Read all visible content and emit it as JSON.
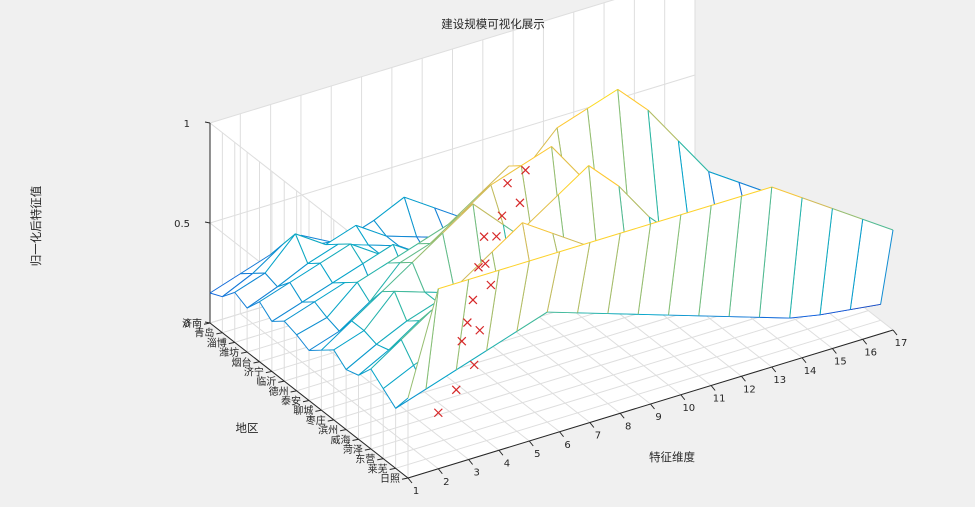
{
  "window": {
    "background": "#f0f0f0"
  },
  "chart_data": {
    "type": "surface3d",
    "title": "建设规模可视化展示",
    "xlabel": "地区",
    "ylabel": "特征维度",
    "zlabel": "归一化后特征值",
    "x_categories": [
      "济南",
      "青岛",
      "淄博",
      "潍坊",
      "烟台",
      "济宁",
      "临沂",
      "德州",
      "泰安",
      "聊城",
      "枣庄",
      "滨州",
      "威海",
      "菏泽",
      "东营",
      "莱芜",
      "日照"
    ],
    "y_ticks": [
      1,
      2,
      3,
      4,
      5,
      6,
      7,
      8,
      9,
      10,
      11,
      12,
      13,
      14,
      15,
      16,
      17
    ],
    "z_ticks": [
      0,
      0.5,
      1
    ],
    "zlim": [
      0,
      1
    ],
    "grid": true,
    "colormap": "parula",
    "colormap_stops": [
      "#352a87",
      "#0f5cdd",
      "#1481d6",
      "#06a4ca",
      "#2eb7a4",
      "#87bf77",
      "#d1bb59",
      "#fec832",
      "#f9fb0e"
    ],
    "values": [
      [
        0.15,
        0.2,
        0.25,
        0.3,
        0.22,
        0.18,
        0.15,
        0.14,
        0.12,
        0.1,
        0.08,
        0.08,
        0.05,
        0.06,
        0.05,
        0.05,
        0.04
      ],
      [
        0.18,
        0.25,
        0.35,
        0.3,
        0.28,
        0.33,
        0.4,
        0.3,
        0.2,
        0.15,
        0.1,
        0.08,
        0.06,
        0.07,
        0.05,
        0.05,
        0.04
      ],
      [
        0.25,
        0.3,
        0.45,
        0.35,
        0.4,
        0.3,
        0.25,
        0.2,
        0.15,
        0.12,
        0.08,
        0.07,
        0.06,
        0.05,
        0.05,
        0.04,
        0.04
      ],
      [
        0.22,
        0.28,
        0.35,
        0.4,
        0.35,
        0.3,
        0.2,
        0.15,
        0.12,
        0.1,
        0.08,
        0.06,
        0.05,
        0.05,
        0.04,
        0.04,
        0.03
      ],
      [
        0.3,
        0.35,
        0.4,
        0.45,
        0.35,
        0.3,
        0.25,
        0.2,
        0.15,
        0.12,
        0.1,
        0.08,
        0.06,
        0.05,
        0.05,
        0.04,
        0.04
      ],
      [
        0.25,
        0.3,
        0.35,
        0.4,
        0.45,
        0.35,
        0.3,
        0.25,
        0.2,
        0.15,
        0.12,
        0.1,
        0.08,
        0.06,
        0.05,
        0.05,
        0.04
      ],
      [
        0.3,
        0.35,
        0.4,
        0.3,
        0.35,
        0.4,
        0.5,
        0.6,
        0.7,
        0.85,
        0.9,
        0.95,
        0.8,
        0.6,
        0.4,
        0.3,
        0.2
      ],
      [
        0.28,
        0.32,
        0.45,
        0.5,
        0.55,
        0.6,
        0.7,
        0.8,
        0.65,
        0.5,
        0.4,
        0.3,
        0.2,
        0.15,
        0.1,
        0.08,
        0.06
      ],
      [
        0.25,
        0.3,
        0.4,
        0.55,
        0.6,
        0.7,
        0.8,
        0.85,
        0.9,
        0.7,
        0.5,
        0.4,
        0.3,
        0.2,
        0.15,
        0.1,
        0.08
      ],
      [
        0.3,
        0.4,
        0.5,
        0.6,
        0.7,
        0.8,
        0.65,
        0.5,
        0.4,
        0.35,
        0.3,
        0.25,
        0.2,
        0.15,
        0.1,
        0.08,
        0.06
      ],
      [
        0.35,
        0.4,
        0.55,
        0.5,
        0.45,
        0.4,
        0.35,
        0.3,
        0.25,
        0.2,
        0.15,
        0.12,
        0.1,
        0.08,
        0.06,
        0.05,
        0.04
      ],
      [
        0.3,
        0.38,
        0.45,
        0.5,
        0.55,
        0.65,
        0.75,
        0.85,
        0.95,
        0.8,
        0.6,
        0.45,
        0.35,
        0.25,
        0.15,
        0.1,
        0.08
      ],
      [
        0.32,
        0.4,
        0.5,
        0.55,
        0.6,
        0.5,
        0.45,
        0.4,
        0.35,
        0.3,
        0.25,
        0.2,
        0.15,
        0.12,
        0.1,
        0.08,
        0.06
      ],
      [
        0.4,
        0.5,
        0.6,
        0.7,
        0.8,
        0.9,
        0.8,
        0.7,
        0.6,
        0.5,
        0.4,
        0.3,
        0.25,
        0.2,
        0.15,
        0.1,
        0.08
      ],
      [
        0.35,
        0.42,
        0.48,
        0.55,
        0.52,
        0.6,
        0.58,
        0.5,
        0.45,
        0.4,
        0.35,
        0.28,
        0.22,
        0.18,
        0.14,
        0.1,
        0.07
      ],
      [
        0.3,
        0.35,
        0.4,
        0.45,
        0.5,
        0.55,
        0.5,
        0.45,
        0.4,
        0.35,
        0.3,
        0.25,
        0.2,
        0.15,
        0.12,
        0.1,
        0.08
      ],
      [
        0.4,
        0.9,
        0.9,
        0.9,
        0.9,
        0.9,
        0.9,
        0.9,
        0.9,
        0.9,
        0.9,
        0.9,
        0.9,
        0.8,
        0.7,
        0.6,
        0.5
      ]
    ],
    "marker_series": {
      "style": "x",
      "color": "#d62728",
      "points": [
        {
          "region": "青岛",
          "dim": 11,
          "value": 0.35
        },
        {
          "region": "淄博",
          "dim": 10,
          "value": 0.38
        },
        {
          "region": "潍坊",
          "dim": 10,
          "value": 0.33
        },
        {
          "region": "烟台",
          "dim": 9,
          "value": 0.36
        },
        {
          "region": "济宁",
          "dim": 8,
          "value": 0.35
        },
        {
          "region": "临沂",
          "dim": 8,
          "value": 0.4
        },
        {
          "region": "德州",
          "dim": 7,
          "value": 0.34
        },
        {
          "region": "泰安",
          "dim": 7,
          "value": 0.3
        },
        {
          "region": "聊城",
          "dim": 6,
          "value": 0.32
        },
        {
          "region": "枣庄",
          "dim": 6,
          "value": 0.55
        },
        {
          "region": "滨州",
          "dim": 5,
          "value": 0.35
        },
        {
          "region": "威海",
          "dim": 5,
          "value": 0.36
        },
        {
          "region": "菏泽",
          "dim": 4,
          "value": 0.4
        },
        {
          "region": "东营",
          "dim": 4,
          "value": 0.33
        },
        {
          "region": "莱芜",
          "dim": 3,
          "value": 0.3
        },
        {
          "region": "日照",
          "dim": 2,
          "value": 0.28
        }
      ]
    }
  }
}
